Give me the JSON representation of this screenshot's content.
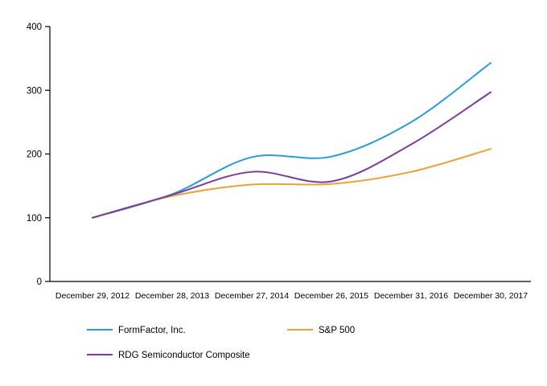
{
  "chart_data": {
    "type": "line",
    "title": "",
    "xlabel": "",
    "ylabel": "",
    "categories": [
      "December 29, 2012",
      "December 28, 2013",
      "December 27, 2014",
      "December 26, 2015",
      "December 31, 2016",
      "December 30, 2017"
    ],
    "series": [
      {
        "name": "FormFactor, Inc.",
        "color": "#2E9BD8",
        "values": [
          100,
          137,
          195,
          196,
          250,
          343
        ]
      },
      {
        "name": "S&P 500",
        "color": "#E7A33B",
        "values": [
          100,
          134,
          152,
          153,
          172,
          208
        ]
      },
      {
        "name": "RDG Semiconductor Composite",
        "color": "#7B3D97",
        "values": [
          100,
          136,
          172,
          157,
          215,
          297
        ]
      }
    ],
    "ylim": [
      0,
      400
    ],
    "yticks": [
      0,
      100,
      200,
      300,
      400
    ],
    "grid": false,
    "legend_position": "bottom",
    "line_smoothing": "spline",
    "axis_color": "#000000"
  }
}
